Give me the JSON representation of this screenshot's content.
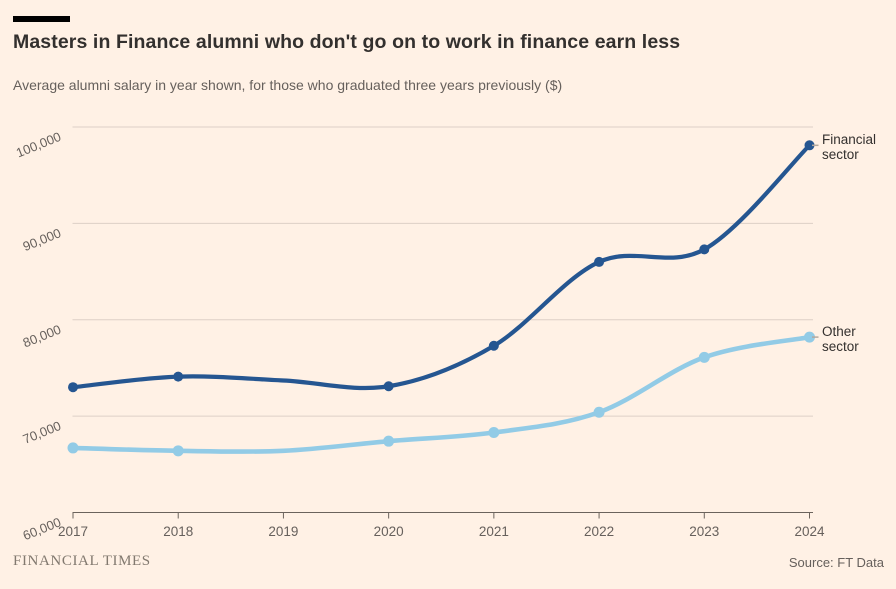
{
  "header": {
    "title": "Masters in Finance alumni who don't go on to work in finance earn less",
    "subtitle": "Average alumni salary in year shown, for those who graduated three years previously ($)"
  },
  "chart_data": {
    "type": "line",
    "title": "Masters in Finance alumni who don't go on to work in finance earn less",
    "subtitle": "Average alumni salary in year shown, for those who graduated three years previously ($)",
    "x": [
      2017,
      2018,
      2019,
      2020,
      2021,
      2022,
      2023,
      2024
    ],
    "x_tick_labels": [
      "2017",
      "2018",
      "2019",
      "2020",
      "2021",
      "2022",
      "2023",
      "2024"
    ],
    "series": [
      {
        "name": "Financial sector",
        "color": "#255691",
        "values": [
          73000,
          74100,
          73700,
          73100,
          77300,
          86000,
          87300,
          98100
        ],
        "no_marker_x": [
          2019
        ],
        "dot_radius": 5,
        "stroke_width": 4.2
      },
      {
        "name": "Other sector",
        "color": "#92cbe6",
        "values": [
          66700,
          66400,
          66400,
          67400,
          68300,
          70400,
          76100,
          78200
        ],
        "no_marker_x": [
          2019
        ],
        "dot_radius": 5.5,
        "stroke_width": 4.6
      }
    ],
    "y_ticks": [
      {
        "value": 100000,
        "label": "100,000"
      },
      {
        "value": 90000,
        "label": "90,000"
      },
      {
        "value": 80000,
        "label": "80,000"
      },
      {
        "value": 70000,
        "label": "70,000"
      },
      {
        "value": 60000,
        "label": "60,000"
      }
    ],
    "ylim": [
      60000,
      101500
    ],
    "grid": "horizontal",
    "legend_position": "direct-labels-right-edge"
  },
  "footer": {
    "brand": "FINANCIAL TIMES",
    "source": "Source: FT Data"
  },
  "colors": {
    "background": "#FFF1E5",
    "title_bar": "#000000",
    "title_text": "#33302e",
    "subtitle_text": "#66605c",
    "axis_text": "#66605c",
    "gridline": "#ddd0c6",
    "axis_line": "#6b635c",
    "connector": "#b3a99f"
  }
}
